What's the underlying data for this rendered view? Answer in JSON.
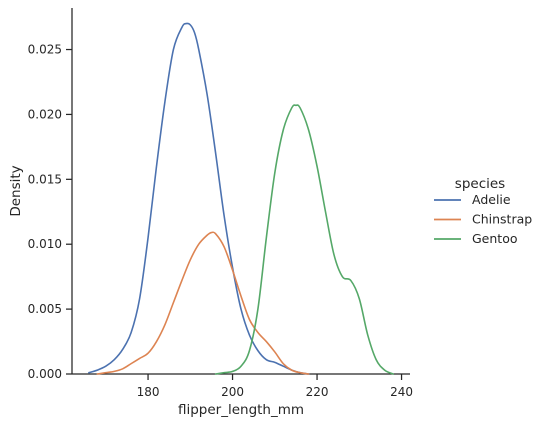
{
  "chart_data": {
    "type": "line",
    "chart_kind": "kde",
    "xlabel": "flipper_length_mm",
    "ylabel": "Density",
    "xlim": [
      162,
      242
    ],
    "ylim": [
      0,
      0.0282
    ],
    "x_ticks": [
      180,
      200,
      220,
      240
    ],
    "x_tick_labels": [
      "180",
      "200",
      "220",
      "240"
    ],
    "y_ticks": [
      0,
      0.005,
      0.01,
      0.015,
      0.02,
      0.025
    ],
    "y_tick_labels": [
      "0.000",
      "0.005",
      "0.010",
      "0.015",
      "0.020",
      "0.025"
    ],
    "grid": false,
    "legend": {
      "title": "species",
      "placement": "right",
      "entries": [
        "Adelie",
        "Chinstrap",
        "Gentoo"
      ]
    },
    "series": [
      {
        "name": "Adelie",
        "color": "#4c72b0",
        "x": [
          166,
          168,
          170,
          172,
          174,
          176,
          178,
          180,
          182,
          184,
          186,
          188,
          189,
          190,
          191,
          192,
          194,
          196,
          198,
          200,
          202,
          204,
          206,
          208,
          210,
          212,
          214,
          216,
          218
        ],
        "y": [
          0.0001,
          0.0003,
          0.0006,
          0.0011,
          0.0019,
          0.0032,
          0.0058,
          0.0105,
          0.016,
          0.021,
          0.025,
          0.0267,
          0.027,
          0.0269,
          0.0263,
          0.025,
          0.0215,
          0.017,
          0.0122,
          0.0082,
          0.005,
          0.003,
          0.0018,
          0.0011,
          0.0009,
          0.0006,
          0.0003,
          0.0001,
          0.0
        ]
      },
      {
        "name": "Chinstrap",
        "color": "#dd8452",
        "x": [
          168,
          170,
          172,
          174,
          176,
          178,
          180,
          182,
          184,
          186,
          188,
          190,
          192,
          194,
          195,
          196,
          198,
          200,
          202,
          204,
          206,
          208,
          210,
          212,
          214,
          216,
          218
        ],
        "y": [
          0.0,
          0.0001,
          0.0002,
          0.0004,
          0.0008,
          0.0012,
          0.0016,
          0.0025,
          0.0038,
          0.0055,
          0.0072,
          0.0088,
          0.01,
          0.0107,
          0.0109,
          0.0108,
          0.0098,
          0.008,
          0.006,
          0.0042,
          0.0032,
          0.0025,
          0.0017,
          0.0008,
          0.0003,
          0.0001,
          0.0
        ]
      },
      {
        "name": "Gentoo",
        "color": "#55a868",
        "x": [
          196,
          198,
          200,
          202,
          204,
          206,
          208,
          210,
          212,
          214,
          215,
          216,
          218,
          220,
          222,
          224,
          226,
          228,
          230,
          232,
          234,
          236,
          238
        ],
        "y": [
          0.0,
          0.0001,
          0.0002,
          0.0006,
          0.0018,
          0.005,
          0.0105,
          0.0155,
          0.0188,
          0.0205,
          0.0207,
          0.0205,
          0.0188,
          0.016,
          0.0125,
          0.0092,
          0.0075,
          0.0072,
          0.0058,
          0.003,
          0.0011,
          0.0003,
          0.0
        ]
      }
    ]
  }
}
